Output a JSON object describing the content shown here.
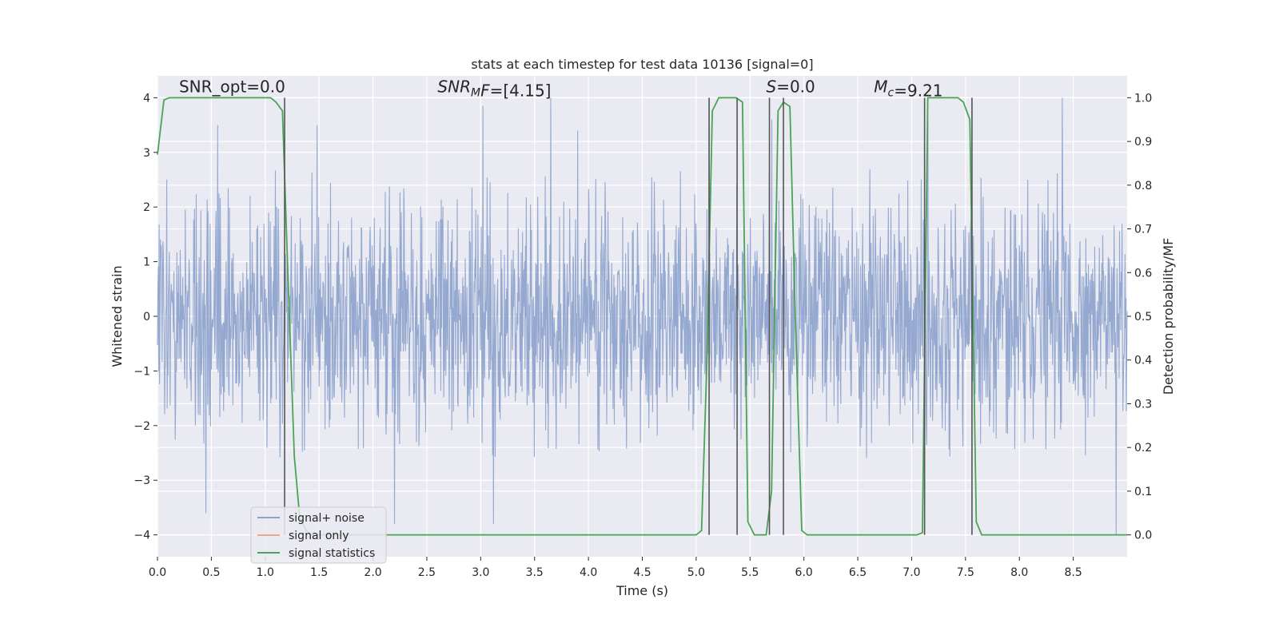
{
  "chart_data": {
    "type": "line",
    "title": "stats at each timestep for test data 10136 [signal=0]",
    "xlabel": "Time (s)",
    "ylabel_left": "Whitened strain",
    "ylabel_right": "Detection probability/MF",
    "xlim": [
      0.0,
      9.0
    ],
    "ylim_left": [
      -4.4,
      4.4
    ],
    "ylim_right": [
      -0.05,
      1.05
    ],
    "x_ticks": [
      "0.0",
      "0.5",
      "1.0",
      "1.5",
      "2.0",
      "2.5",
      "3.0",
      "3.5",
      "4.0",
      "4.5",
      "5.0",
      "5.5",
      "6.0",
      "6.5",
      "7.0",
      "7.5",
      "8.0",
      "8.5"
    ],
    "y_left_ticks": [
      "4",
      "3",
      "2",
      "1",
      "0",
      "−1",
      "−2",
      "−3",
      "−4"
    ],
    "y_left_values": [
      4,
      3,
      2,
      1,
      0,
      -1,
      -2,
      -3,
      -4
    ],
    "y_right_ticks": [
      "1.0",
      "0.9",
      "0.8",
      "0.7",
      "0.6",
      "0.5",
      "0.4",
      "0.3",
      "0.2",
      "0.1",
      "0.0"
    ],
    "y_right_values": [
      1.0,
      0.9,
      0.8,
      0.7,
      0.6,
      0.5,
      0.4,
      0.3,
      0.2,
      0.1,
      0.0
    ],
    "grid": true,
    "legend_placement": "lower-left",
    "annotations": [
      {
        "name": "snr-opt",
        "parts": [
          {
            "t": "SNR_opt=0.0",
            "i": false
          }
        ],
        "x": 0.2,
        "y": 4.1
      },
      {
        "name": "snr-mf",
        "parts": [
          {
            "t": "SNR",
            "i": true
          },
          {
            "t": "M",
            "i": true,
            "sub": true
          },
          {
            "t": "F",
            "i": true
          },
          {
            "t": "=[4.15]",
            "i": false
          }
        ],
        "x": 2.6,
        "y": 4.1
      },
      {
        "name": "s-value",
        "parts": [
          {
            "t": "S",
            "i": true
          },
          {
            "t": "=0.0",
            "i": false
          }
        ],
        "x": 5.65,
        "y": 4.1
      },
      {
        "name": "mc-value",
        "parts": [
          {
            "t": "M",
            "i": true
          },
          {
            "t": "c",
            "i": true,
            "sub": true
          },
          {
            "t": "=9.21",
            "i": false
          }
        ],
        "x": 6.65,
        "y": 4.1
      }
    ],
    "series": [
      {
        "name": "signal+ noise",
        "color": "#8fa4cd",
        "axis": "left",
        "style": "noise",
        "duration": 9.0,
        "sample_count": 2304,
        "typical_envelope": [
          -2.6,
          2.7
        ],
        "highlighted_peaks": [
          {
            "x": 0.45,
            "y": -3.6
          },
          {
            "x": 0.56,
            "y": 3.5
          },
          {
            "x": 1.48,
            "y": 3.5
          },
          {
            "x": 2.2,
            "y": -3.8
          },
          {
            "x": 3.02,
            "y": 3.85
          },
          {
            "x": 3.12,
            "y": -3.8
          },
          {
            "x": 3.65,
            "y": 4.0
          },
          {
            "x": 3.9,
            "y": 3.4
          },
          {
            "x": 5.12,
            "y": 4.0
          },
          {
            "x": 5.7,
            "y": 3.6
          },
          {
            "x": 7.15,
            "y": 3.6
          },
          {
            "x": 8.4,
            "y": 4.0
          },
          {
            "x": 8.9,
            "y": -4.0
          }
        ]
      },
      {
        "name": "signal only",
        "color": "#e8a88a",
        "axis": "left",
        "style": "line",
        "x": [
          0.0,
          9.0
        ],
        "y": [
          0.0,
          0.0
        ]
      },
      {
        "name": "signal statistics",
        "color": "#4aa357",
        "axis": "right",
        "style": "line",
        "x": [
          0.0,
          0.06,
          0.11,
          0.17,
          0.22,
          0.28,
          0.33,
          0.39,
          0.44,
          0.5,
          0.55,
          0.61,
          0.66,
          0.72,
          0.77,
          0.83,
          0.88,
          0.94,
          0.99,
          1.05,
          1.1,
          1.16,
          1.21,
          1.27,
          1.32,
          1.38,
          1.43,
          1.49,
          1.55,
          5.0,
          5.05,
          5.1,
          5.15,
          5.21,
          5.26,
          5.32,
          5.37,
          5.43,
          5.48,
          5.54,
          5.59,
          5.65,
          5.7,
          5.76,
          5.81,
          5.87,
          5.92,
          5.98,
          6.03,
          6.09,
          7.0,
          7.05,
          7.1,
          7.15,
          7.21,
          7.26,
          7.32,
          7.37,
          7.43,
          7.48,
          7.54,
          7.6,
          7.65,
          7.7,
          7.76,
          9.0
        ],
        "y": [
          0.87,
          0.995,
          1.0,
          1.0,
          1.0,
          1.0,
          1.0,
          1.0,
          1.0,
          1.0,
          1.0,
          1.0,
          1.0,
          1.0,
          1.0,
          1.0,
          1.0,
          1.0,
          1.0,
          1.0,
          0.99,
          0.97,
          0.6,
          0.18,
          0.04,
          0.01,
          0.0,
          0.0,
          0.0,
          0.0,
          0.01,
          0.4,
          0.97,
          1.0,
          1.0,
          1.0,
          1.0,
          0.99,
          0.03,
          0.0,
          0.0,
          0.0,
          0.1,
          0.97,
          0.99,
          0.98,
          0.5,
          0.01,
          0.0,
          0.0,
          0.0,
          0.0,
          0.005,
          1.0,
          1.0,
          1.0,
          1.0,
          1.0,
          1.0,
          0.99,
          0.95,
          0.03,
          0.0,
          0.0,
          0.0,
          0.0
        ]
      }
    ],
    "vertical_markers": {
      "color": "#555555",
      "x": [
        1.18,
        5.12,
        5.38,
        5.68,
        5.81,
        7.12,
        7.56
      ],
      "y_range": [
        -4,
        4
      ]
    }
  }
}
